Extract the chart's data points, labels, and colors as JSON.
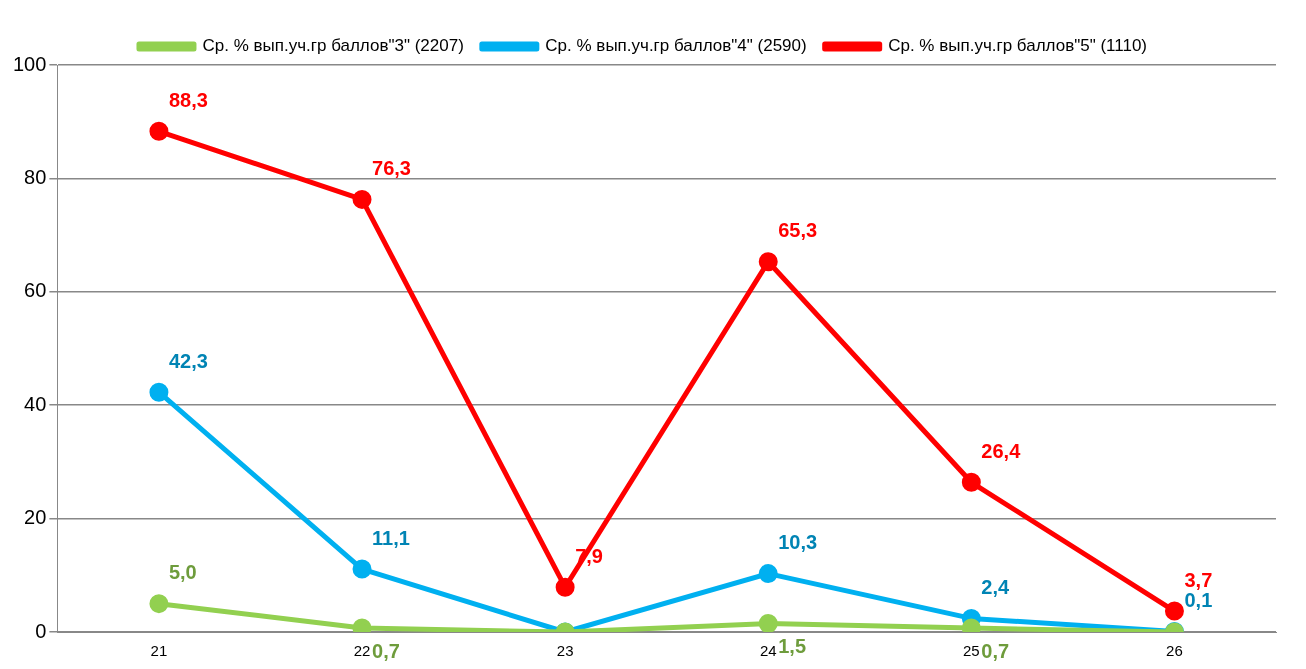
{
  "chart_data": {
    "type": "line",
    "categories": [
      "21",
      "22",
      "23",
      "24",
      "25",
      "26"
    ],
    "series": [
      {
        "name": "Ср. % вып.уч.гр баллов\"3\" (2207)",
        "color": "#92d050",
        "values": [
          5.0,
          0.7,
          0,
          1.5,
          0.7,
          0
        ],
        "value_labels": [
          "5,0",
          "0,7",
          null,
          "1,5",
          "0,7",
          null
        ]
      },
      {
        "name": "Ср. % вып.уч.гр баллов\"4\" (2590)",
        "color": "#00b0f0",
        "values": [
          42.3,
          11.1,
          0,
          10.3,
          2.4,
          0.1
        ],
        "value_labels": [
          "42,3",
          "11,1",
          null,
          "10,3",
          "2,4",
          "0,1"
        ]
      },
      {
        "name": "Ср. % вып.уч.гр баллов\"5\" (1110)",
        "color": "#ff0000",
        "values": [
          88.3,
          76.3,
          7.9,
          65.3,
          26.4,
          3.7
        ],
        "value_labels": [
          "88,3",
          "76,3",
          "7,9",
          "65,3",
          "26,4",
          "3,7"
        ]
      }
    ],
    "ylim": [
      0,
      100
    ],
    "yticks": [
      0,
      20,
      40,
      60,
      80,
      100
    ],
    "grid": "y",
    "legend": "top",
    "marker": "circle",
    "line_style": "solid"
  }
}
